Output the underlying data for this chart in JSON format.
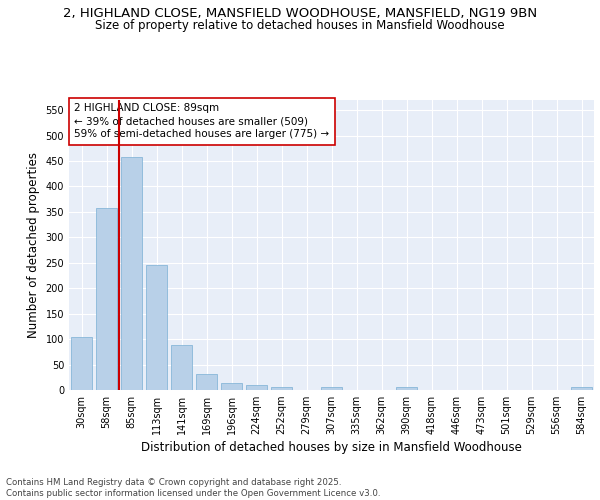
{
  "title_line1": "2, HIGHLAND CLOSE, MANSFIELD WOODHOUSE, MANSFIELD, NG19 9BN",
  "title_line2": "Size of property relative to detached houses in Mansfield Woodhouse",
  "xlabel": "Distribution of detached houses by size in Mansfield Woodhouse",
  "ylabel": "Number of detached properties",
  "categories": [
    "30sqm",
    "58sqm",
    "85sqm",
    "113sqm",
    "141sqm",
    "169sqm",
    "196sqm",
    "224sqm",
    "252sqm",
    "279sqm",
    "307sqm",
    "335sqm",
    "362sqm",
    "390sqm",
    "418sqm",
    "446sqm",
    "473sqm",
    "501sqm",
    "529sqm",
    "556sqm",
    "584sqm"
  ],
  "values": [
    105,
    357,
    457,
    245,
    88,
    31,
    13,
    9,
    5,
    0,
    5,
    0,
    0,
    5,
    0,
    0,
    0,
    0,
    0,
    0,
    5
  ],
  "bar_color": "#b8d0e8",
  "bar_edge_color": "#7aafd4",
  "highlight_color": "#cc0000",
  "annotation_text": "2 HIGHLAND CLOSE: 89sqm\n← 39% of detached houses are smaller (509)\n59% of semi-detached houses are larger (775) →",
  "annotation_box_color": "#ffffff",
  "annotation_box_edge": "#cc0000",
  "ylim": [
    0,
    570
  ],
  "yticks": [
    0,
    50,
    100,
    150,
    200,
    250,
    300,
    350,
    400,
    450,
    500,
    550
  ],
  "bg_color": "#e8eef8",
  "footer_text": "Contains HM Land Registry data © Crown copyright and database right 2025.\nContains public sector information licensed under the Open Government Licence v3.0.",
  "title_fontsize": 9.5,
  "subtitle_fontsize": 8.5,
  "tick_fontsize": 7,
  "label_fontsize": 8.5,
  "annotation_fontsize": 7.5,
  "footer_fontsize": 6.2
}
